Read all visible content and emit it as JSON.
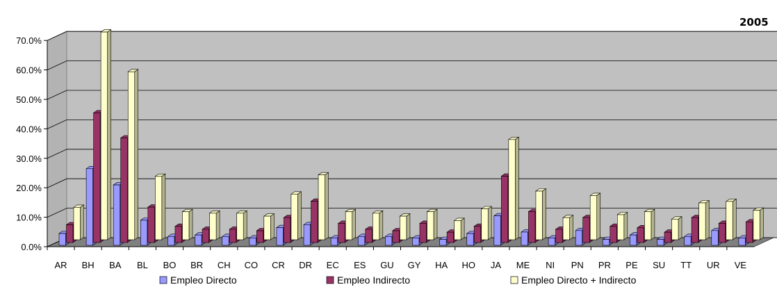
{
  "chart_data": {
    "type": "bar",
    "title": "2005",
    "categories": [
      "AR",
      "BH",
      "BA",
      "BL",
      "BO",
      "BR",
      "CH",
      "CO",
      "CR",
      "DR",
      "EC",
      "ES",
      "GU",
      "GY",
      "HA",
      "HO",
      "JA",
      "ME",
      "NI",
      "PN",
      "PR",
      "PE",
      "SU",
      "TT",
      "UR",
      "VE"
    ],
    "series": [
      {
        "name": "Empleo Directo",
        "color": "#9999ff",
        "values": [
          4.0,
          26.0,
          20.5,
          8.5,
          3.0,
          3.5,
          3.0,
          2.5,
          6.0,
          7.0,
          2.5,
          3.0,
          3.0,
          2.5,
          2.0,
          4.0,
          10.0,
          4.5,
          2.5,
          5.0,
          2.0,
          3.5,
          2.0,
          3.0,
          5.0,
          2.5
        ]
      },
      {
        "name": "Empleo Indirecto",
        "color": "#993366",
        "values": [
          6.0,
          44.0,
          35.5,
          12.0,
          5.5,
          4.5,
          4.5,
          4.0,
          8.5,
          14.0,
          6.5,
          4.5,
          4.0,
          6.5,
          3.5,
          5.5,
          22.5,
          10.5,
          4.5,
          8.5,
          5.5,
          5.0,
          3.5,
          8.5,
          6.5,
          7.0
        ]
      },
      {
        "name": "Empleo Directo + Indirecto",
        "color": "#ffffcc",
        "values": [
          11.0,
          70.5,
          57.0,
          21.5,
          9.5,
          9.0,
          9.0,
          8.0,
          15.5,
          22.0,
          9.5,
          9.0,
          8.0,
          9.5,
          6.5,
          10.5,
          34.0,
          16.5,
          7.5,
          15.0,
          8.5,
          9.5,
          7.0,
          12.5,
          13.0,
          10.0
        ]
      }
    ],
    "ylim": [
      0,
      70
    ],
    "yticks": [
      "0.0%",
      "10.0%",
      "20.0%",
      "30.0%",
      "40.0%",
      "50.0%",
      "60.0%",
      "70.0%"
    ],
    "grid": true,
    "legend_position": "bottom"
  }
}
